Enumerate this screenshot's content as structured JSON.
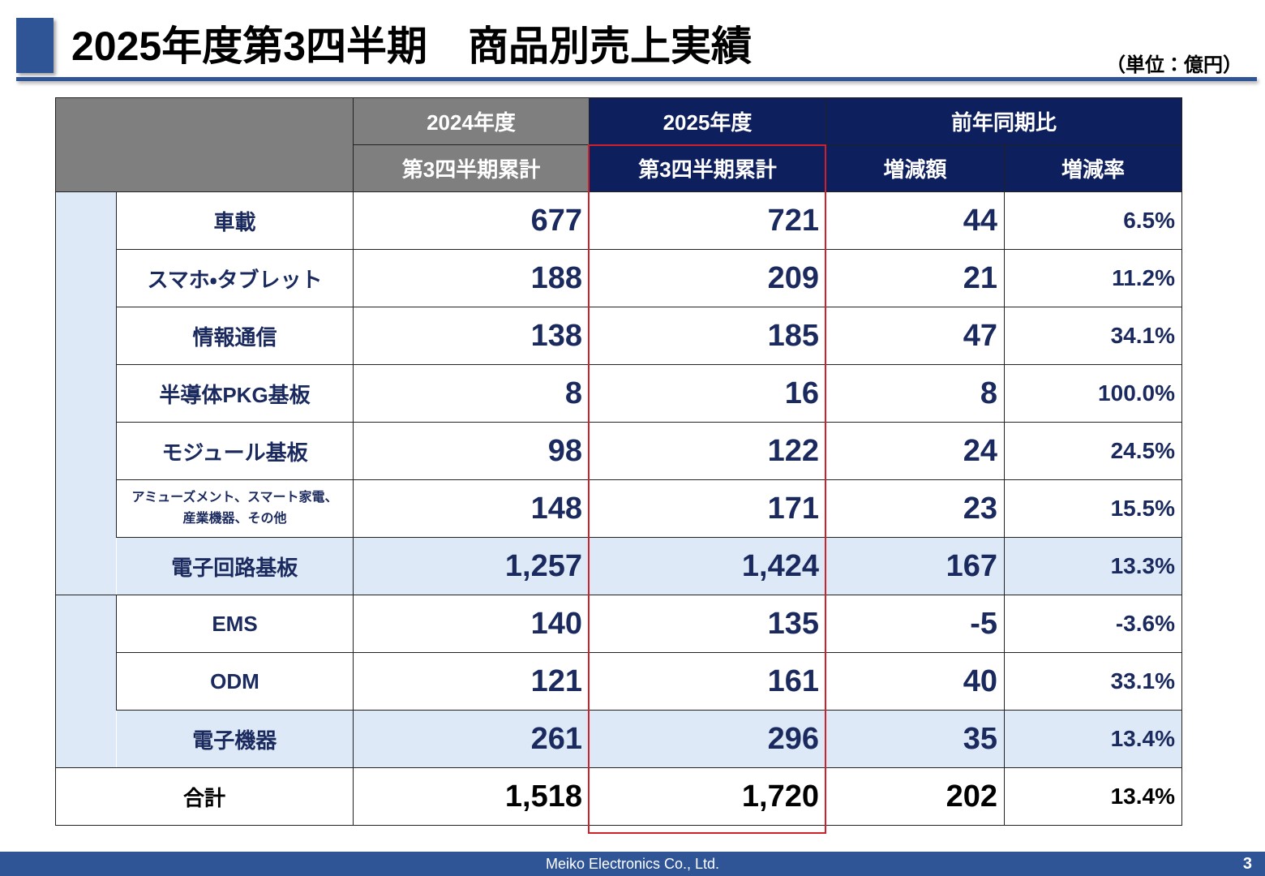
{
  "header": {
    "title": "2025年度第3四半期　商品別売上実績",
    "unit": "（単位：億円）"
  },
  "table": {
    "column_headers": [
      [
        "2024年度",
        "2025年度",
        "前年同期比"
      ],
      [
        "第3四半期累計",
        "第3四半期累計",
        "増減額",
        "増減率"
      ]
    ],
    "rows": [
      [
        "車載",
        "677",
        "721",
        "44",
        "6.5%"
      ],
      [
        "スマホ・タブレット",
        "188",
        "209",
        "21",
        "11.2%"
      ],
      [
        "情報通信",
        "138",
        "185",
        "47",
        "34.1%"
      ],
      [
        "半導体PKG基板",
        "8",
        "16",
        "8",
        "100.0%"
      ],
      [
        "モジュール基板",
        "98",
        "122",
        "24",
        "24.5%"
      ],
      [
        "アミューズメント、スマート家電、\n産業機器、その他",
        "148",
        "171",
        "23",
        "15.5%"
      ],
      [
        "電子回路基板",
        "1,257",
        "1,424",
        "167",
        "13.3%"
      ],
      [
        "EMS",
        "140",
        "135",
        "-5",
        "-3.6%"
      ],
      [
        "ODM",
        "121",
        "161",
        "40",
        "33.1%"
      ],
      [
        "電子機器",
        "261",
        "296",
        "35",
        "13.4%"
      ],
      [
        "合計",
        "1,518",
        "1,720",
        "202",
        "13.4%"
      ]
    ]
  },
  "footer": {
    "company": "Meiko Electronics Co., Ltd.",
    "page": "3"
  }
}
